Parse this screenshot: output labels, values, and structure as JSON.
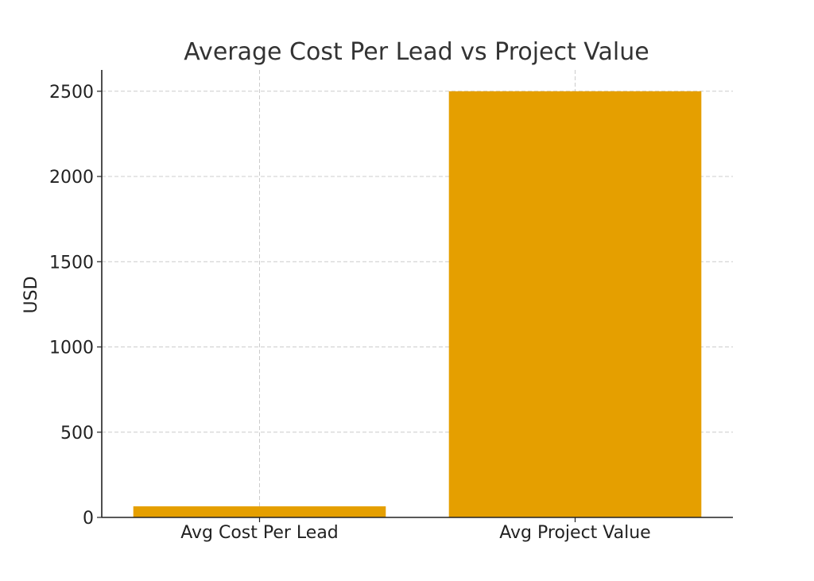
{
  "chart_data": {
    "type": "bar",
    "title": "Average Cost Per Lead vs Project Value",
    "xlabel": "",
    "ylabel": "USD",
    "categories": [
      "Avg Cost Per Lead",
      "Avg Project Value"
    ],
    "values": [
      65,
      2500
    ],
    "ylim": [
      0,
      2625
    ],
    "yticks": [
      0,
      500,
      1000,
      1500,
      2000,
      2500
    ],
    "grid": true,
    "colors": {
      "bar": "#e59f00",
      "grid": "#cccccc",
      "axis": "#222222",
      "title": "#333333"
    }
  }
}
